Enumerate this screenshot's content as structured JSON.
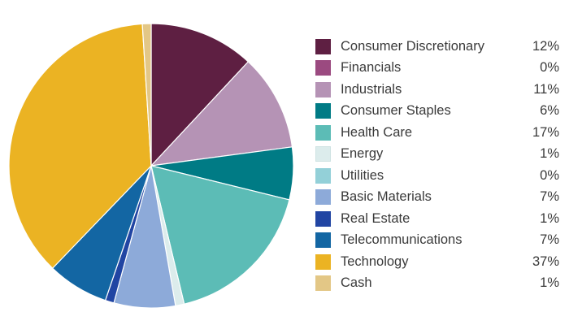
{
  "chart_data": {
    "type": "pie",
    "title": "",
    "legend_position": "right",
    "slices": [
      {
        "label": "Consumer Discretionary",
        "value_label": "12%",
        "value": 12.0,
        "color": "#5e1f42"
      },
      {
        "label": "Financials",
        "value_label": "0%",
        "value": 0.0,
        "color": "#9b4a80"
      },
      {
        "label": "Industrials",
        "value_label": "11%",
        "value": 11.0,
        "color": "#b593b5"
      },
      {
        "label": "Consumer Staples",
        "value_label": "6%",
        "value": 6.0,
        "color": "#007b85"
      },
      {
        "label": "Health Care",
        "value_label": "17%",
        "value": 17.5,
        "color": "#5cbcb6"
      },
      {
        "label": "Energy",
        "value_label": "1%",
        "value": 1.0,
        "color": "#dcecec"
      },
      {
        "label": "Utilities",
        "value_label": "0%",
        "value": 0.0,
        "color": "#93d0d8"
      },
      {
        "label": "Basic Materials",
        "value_label": "7%",
        "value": 7.0,
        "color": "#8daad9"
      },
      {
        "label": "Real Estate",
        "value_label": "1%",
        "value": 1.0,
        "color": "#2145a3"
      },
      {
        "label": "Telecommunications",
        "value_label": "7%",
        "value": 7.0,
        "color": "#1366a3"
      },
      {
        "label": "Technology",
        "value_label": "37%",
        "value": 37.0,
        "color": "#ebb323"
      },
      {
        "label": "Cash",
        "value_label": "1%",
        "value": 1.0,
        "color": "#e3c786"
      }
    ]
  }
}
